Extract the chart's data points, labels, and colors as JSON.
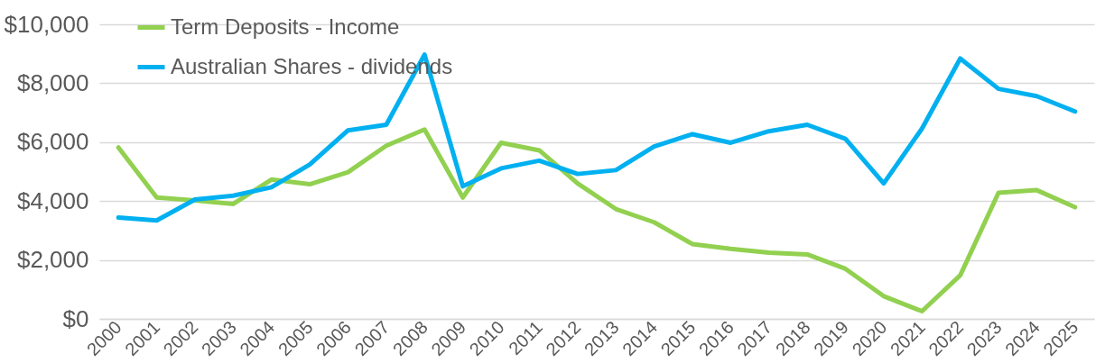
{
  "chart_data": {
    "type": "line",
    "categories": [
      "2000",
      "2001",
      "2002",
      "2003",
      "2004",
      "2005",
      "2006",
      "2007",
      "2008",
      "2009",
      "2010",
      "2011",
      "2012",
      "2013",
      "2014",
      "2015",
      "2016",
      "2017",
      "2018",
      "2019",
      "2020",
      "2021",
      "2022",
      "2023",
      "2024",
      "2025"
    ],
    "series": [
      {
        "name": "Term Deposits - Income",
        "color": "#92d050",
        "values": [
          5820,
          4120,
          4020,
          3900,
          4730,
          4570,
          4980,
          5880,
          6430,
          4120,
          5980,
          5720,
          4600,
          3730,
          3280,
          2540,
          2380,
          2250,
          2190,
          1700,
          770,
          260,
          1480,
          4280,
          4370,
          3790
        ]
      },
      {
        "name": "Australian Shares - dividends",
        "color": "#00b0f0",
        "values": [
          3440,
          3340,
          4050,
          4180,
          4470,
          5240,
          6400,
          6590,
          8970,
          4500,
          5110,
          5370,
          4920,
          5050,
          5850,
          6270,
          5980,
          6370,
          6590,
          6110,
          4600,
          6460,
          8840,
          7810,
          7560,
          7040
        ]
      }
    ],
    "ylim": [
      0,
      10000
    ],
    "yticks": [
      {
        "value": 0,
        "label": "$0"
      },
      {
        "value": 2000,
        "label": "$2,000"
      },
      {
        "value": 4000,
        "label": "$4,000"
      },
      {
        "value": 6000,
        "label": "$6,000"
      },
      {
        "value": 8000,
        "label": "$8,000"
      },
      {
        "value": 10000,
        "label": "$10,000"
      }
    ],
    "grid": "y",
    "legend": "top left",
    "marker": "none",
    "line_style": "solid"
  }
}
